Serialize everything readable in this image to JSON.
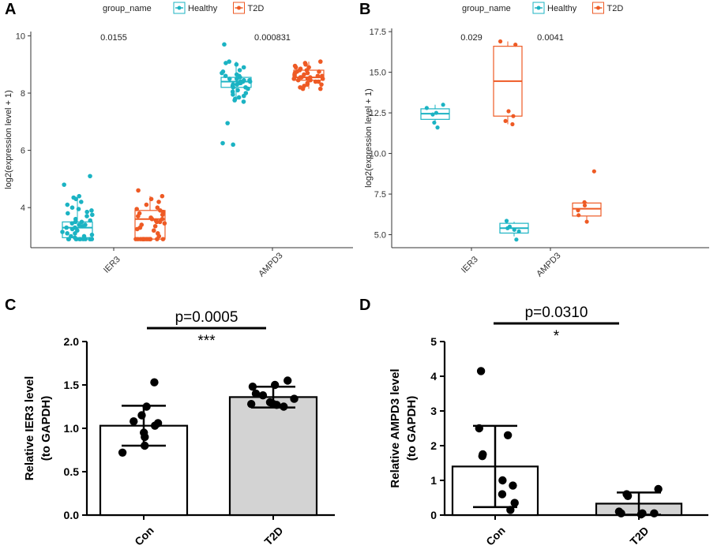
{
  "figure": {
    "panels": [
      "A",
      "B",
      "C",
      "D"
    ]
  },
  "colors": {
    "healthy": "#1BB3C3",
    "t2d": "#EE5A24",
    "bar_con": "#ffffff",
    "bar_t2d": "#d3d3d3"
  },
  "chart_data": [
    {
      "panel": "A",
      "type": "box",
      "legend_title": "group_name",
      "legend": [
        "Healthy",
        "T2D"
      ],
      "legend_position": "top",
      "categories": [
        "IER3",
        "AMPD3"
      ],
      "ylabel": "log2(expression level + 1)",
      "ylim": [
        2.6,
        10.15
      ],
      "yticks": [
        4,
        6,
        8,
        10
      ],
      "pvalues": [
        "0.0155",
        "0.000831"
      ],
      "boxes": [
        {
          "category": "IER3",
          "group": "Healthy",
          "min": 2.9,
          "q1": 2.95,
          "median": 3.3,
          "q3": 3.5,
          "max": 4.3
        },
        {
          "category": "IER3",
          "group": "T2D",
          "min": 2.9,
          "q1": 2.9,
          "median": 3.6,
          "q3": 3.9,
          "max": 4.4
        },
        {
          "category": "AMPD3",
          "group": "Healthy",
          "min": 7.7,
          "q1": 8.2,
          "median": 8.4,
          "q3": 8.55,
          "max": 9.1
        },
        {
          "category": "AMPD3",
          "group": "T2D",
          "min": 8.15,
          "q1": 8.45,
          "median": 8.55,
          "q3": 8.8,
          "max": 9.1
        }
      ],
      "points": [
        {
          "category": "IER3",
          "group": "Healthy",
          "values": [
            5.1,
            4.8,
            4.4,
            4.35,
            4.3,
            4.2,
            4.1,
            4.0,
            3.95,
            3.9,
            3.85,
            3.8,
            3.75,
            3.7,
            3.6,
            3.55,
            3.5,
            3.5,
            3.45,
            3.4,
            3.4,
            3.35,
            3.3,
            3.3,
            3.25,
            3.2,
            3.15,
            3.1,
            3.1,
            3.05,
            3.0,
            3.0,
            2.95,
            2.9,
            2.9,
            2.9,
            2.9,
            2.9,
            2.9,
            2.9,
            2.9,
            2.9,
            2.9,
            2.9
          ]
        },
        {
          "category": "IER3",
          "group": "T2D",
          "values": [
            4.6,
            4.4,
            4.3,
            4.2,
            4.1,
            4.0,
            3.95,
            3.9,
            3.85,
            3.8,
            3.75,
            3.7,
            3.65,
            3.6,
            3.6,
            3.55,
            3.5,
            3.5,
            3.45,
            3.4,
            3.35,
            3.3,
            3.25,
            3.2,
            3.1,
            3.0,
            2.9,
            2.9,
            2.9,
            2.9,
            2.9,
            2.9,
            2.9,
            2.9,
            2.9,
            2.9,
            2.9,
            2.9,
            2.9,
            2.9
          ]
        },
        {
          "category": "AMPD3",
          "group": "Healthy",
          "values": [
            9.7,
            9.1,
            9.05,
            9.0,
            8.9,
            8.8,
            8.75,
            8.7,
            8.65,
            8.6,
            8.6,
            8.55,
            8.5,
            8.5,
            8.45,
            8.45,
            8.4,
            8.4,
            8.4,
            8.35,
            8.35,
            8.3,
            8.3,
            8.25,
            8.2,
            8.2,
            8.15,
            8.1,
            8.05,
            8.0,
            7.95,
            7.9,
            7.85,
            7.8,
            7.75,
            7.7,
            6.95,
            6.25,
            6.2
          ]
        },
        {
          "category": "AMPD3",
          "group": "T2D",
          "values": [
            9.1,
            9.05,
            9.0,
            8.95,
            8.9,
            8.9,
            8.85,
            8.8,
            8.8,
            8.75,
            8.75,
            8.7,
            8.7,
            8.65,
            8.65,
            8.6,
            8.6,
            8.6,
            8.55,
            8.55,
            8.55,
            8.5,
            8.5,
            8.5,
            8.45,
            8.45,
            8.4,
            8.4,
            8.35,
            8.3,
            8.3,
            8.25,
            8.2,
            8.15,
            8.15
          ]
        }
      ]
    },
    {
      "panel": "B",
      "type": "box",
      "legend_title": "group_name",
      "legend": [
        "Healthy",
        "T2D"
      ],
      "legend_position": "top",
      "categories": [
        "IER3",
        "AMPD3"
      ],
      "ylabel": "log2(expression level + 1)",
      "ylim": [
        4.2,
        17.7
      ],
      "yticks": [
        5.0,
        7.5,
        10.0,
        12.5,
        15.0,
        17.5
      ],
      "yticklabels": [
        "5.0",
        "7.5",
        "10.0",
        "12.5",
        "15.0",
        "17.5"
      ],
      "pvalues": [
        "0.029",
        "0.0041"
      ],
      "boxes": [
        {
          "category": "IER3",
          "group": "Healthy",
          "min": 11.9,
          "q1": 12.1,
          "median": 12.45,
          "q3": 12.75,
          "max": 13.0
        },
        {
          "category": "IER3",
          "group": "T2D",
          "min": 11.8,
          "q1": 12.3,
          "median": 14.45,
          "q3": 16.6,
          "max": 16.9
        },
        {
          "category": "AMPD3",
          "group": "Healthy",
          "min": 4.9,
          "q1": 5.1,
          "median": 5.4,
          "q3": 5.7,
          "max": 5.8
        },
        {
          "category": "AMPD3",
          "group": "T2D",
          "min": 5.8,
          "q1": 6.15,
          "median": 6.6,
          "q3": 6.95,
          "max": 7.0
        }
      ],
      "points": [
        {
          "category": "IER3",
          "group": "Healthy",
          "values": [
            13.0,
            12.8,
            12.5,
            12.4,
            11.9,
            11.6
          ]
        },
        {
          "category": "IER3",
          "group": "T2D",
          "values": [
            16.9,
            16.7,
            12.6,
            12.3,
            12.0,
            11.8
          ]
        },
        {
          "category": "AMPD3",
          "group": "Healthy",
          "values": [
            5.85,
            5.5,
            5.4,
            5.3,
            5.2,
            4.7
          ]
        },
        {
          "category": "AMPD3",
          "group": "T2D",
          "values": [
            8.9,
            7.0,
            6.8,
            6.5,
            6.2,
            5.8
          ]
        }
      ]
    },
    {
      "panel": "C",
      "type": "bar",
      "categories": [
        "Con",
        "T2D"
      ],
      "ylabel_line1": "Relative IER3 level",
      "ylabel_line2": "(to GAPDH)",
      "ylim": [
        0,
        2.0
      ],
      "yticks": [
        0.0,
        0.5,
        1.0,
        1.5,
        2.0
      ],
      "yticklabels": [
        "0.0",
        "0.5",
        "1.0",
        "1.5",
        "2.0"
      ],
      "means": [
        1.03,
        1.36
      ],
      "sd": [
        0.23,
        0.12
      ],
      "points": [
        [
          1.53,
          1.25,
          1.15,
          1.08,
          1.06,
          1.03,
          0.95,
          0.9,
          0.8,
          0.72
        ],
        [
          1.55,
          1.5,
          1.48,
          1.4,
          1.38,
          1.34,
          1.3,
          1.28,
          1.28,
          1.27,
          1.25
        ]
      ],
      "pvalue": "p=0.0005",
      "significance": "***"
    },
    {
      "panel": "D",
      "type": "bar",
      "categories": [
        "Con",
        "T2D"
      ],
      "ylabel_line1": "Relative AMPD3 level",
      "ylabel_line2": "(to GAPDH)",
      "ylim": [
        0,
        5
      ],
      "yticks": [
        0,
        1,
        2,
        3,
        4,
        5
      ],
      "yticklabels": [
        "0",
        "1",
        "2",
        "3",
        "4",
        "5"
      ],
      "means": [
        1.4,
        0.33
      ],
      "sd": [
        1.17,
        0.32
      ],
      "points": [
        [
          4.15,
          2.5,
          2.3,
          1.75,
          1.7,
          1.0,
          0.85,
          0.6,
          0.35,
          0.15
        ],
        [
          0.75,
          0.6,
          0.55,
          0.1,
          0.05,
          0.05,
          0.05,
          0.02
        ]
      ],
      "pvalue": "p=0.0310",
      "significance": "*"
    }
  ]
}
